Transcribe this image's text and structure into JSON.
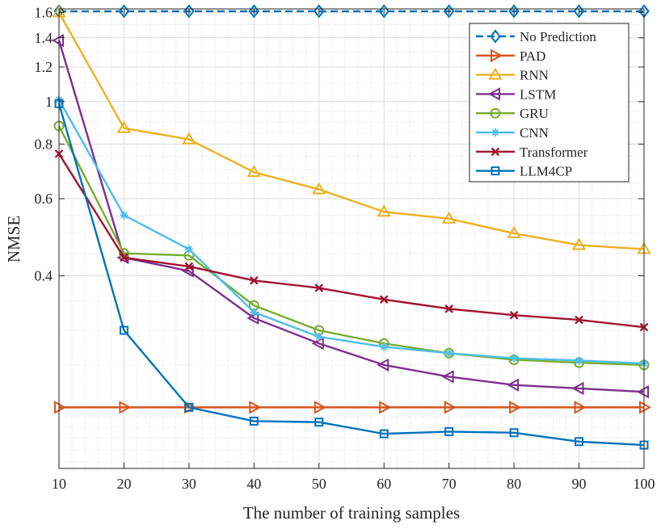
{
  "chart_data": {
    "type": "line",
    "title": "",
    "xlabel": "The number of training samples",
    "ylabel": "NMSE",
    "y_scale": "log",
    "x": [
      10,
      20,
      30,
      40,
      50,
      60,
      70,
      80,
      90,
      100
    ],
    "xlim": [
      10,
      100
    ],
    "ylim": [
      0.145,
      1.63
    ],
    "x_ticks": [
      10,
      20,
      30,
      40,
      50,
      60,
      70,
      80,
      90,
      100
    ],
    "y_ticks": [
      0.4,
      0.6,
      0.8,
      1,
      1.2,
      1.4,
      1.6
    ],
    "y_tick_labels": [
      "0.4",
      "0.6",
      "0.8",
      "1",
      "1.2",
      "1.4",
      "1.6"
    ],
    "grid": true,
    "legend_position": "top-right",
    "series": [
      {
        "name": "No Prediction",
        "color": "#0072BD",
        "marker": "diamond",
        "dashed": true,
        "values": [
          1.61,
          1.61,
          1.61,
          1.61,
          1.61,
          1.61,
          1.61,
          1.61,
          1.61,
          1.61
        ]
      },
      {
        "name": "PAD",
        "color": "#D95319",
        "marker": "triangle-right",
        "dashed": false,
        "values": [
          0.2,
          0.2,
          0.2,
          0.2,
          0.2,
          0.2,
          0.2,
          0.2,
          0.2,
          0.2
        ]
      },
      {
        "name": "RNN",
        "color": "#EDB120",
        "marker": "triangle-up",
        "dashed": false,
        "values": [
          1.6,
          0.87,
          0.82,
          0.69,
          0.63,
          0.56,
          0.54,
          0.5,
          0.47,
          0.46
        ]
      },
      {
        "name": "LSTM",
        "color": "#7E2F8E",
        "marker": "triangle-left",
        "dashed": false,
        "values": [
          1.38,
          0.44,
          0.41,
          0.32,
          0.28,
          0.25,
          0.235,
          0.225,
          0.221,
          0.217
        ]
      },
      {
        "name": "GRU",
        "color": "#77AC30",
        "marker": "circle",
        "dashed": false,
        "values": [
          0.88,
          0.45,
          0.445,
          0.342,
          0.3,
          0.28,
          0.266,
          0.257,
          0.253,
          0.25
        ]
      },
      {
        "name": "CNN",
        "color": "#4DBEEE",
        "marker": "asterisk",
        "dashed": false,
        "values": [
          1.01,
          0.55,
          0.46,
          0.33,
          0.29,
          0.275,
          0.266,
          0.259,
          0.256,
          0.252
        ]
      },
      {
        "name": "Transformer",
        "color": "#A2142F",
        "marker": "x",
        "dashed": false,
        "values": [
          0.76,
          0.44,
          0.42,
          0.39,
          0.375,
          0.353,
          0.336,
          0.325,
          0.317,
          0.305
        ]
      },
      {
        "name": "LLM4CP",
        "color": "#0072BD",
        "marker": "square",
        "dashed": false,
        "values": [
          0.99,
          0.3,
          0.2,
          0.186,
          0.185,
          0.174,
          0.176,
          0.175,
          0.167,
          0.164
        ]
      }
    ]
  }
}
